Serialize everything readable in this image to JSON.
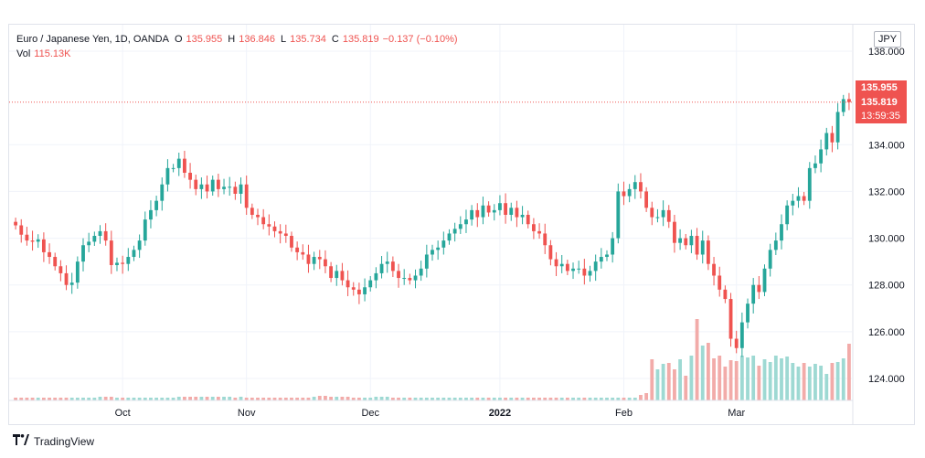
{
  "legend": {
    "symbol": "Euro / Japanese Yen, 1D, OANDA",
    "o_label": "O",
    "o": "135.955",
    "h_label": "H",
    "h": "136.846",
    "l_label": "L",
    "l": "135.734",
    "c_label": "C",
    "c": "135.819",
    "change": "−0.137 (−0.10%)",
    "vol_label": "Vol",
    "vol": "115.13K"
  },
  "currency": "JPY",
  "price_labels": {
    "open": "135.955",
    "close": "135.819",
    "countdown": "13:59:35"
  },
  "branding": {
    "name": "TradingView"
  },
  "colors": {
    "up": "#26a69a",
    "down": "#ef5350",
    "up_volume": "#9ed9d3",
    "down_volume": "#f2aba9",
    "grid": "#f0f3fa"
  },
  "chart_data": {
    "type": "candlestick",
    "ylim": [
      123.0,
      138.8
    ],
    "y_ticks": [
      "138.000",
      "134.000",
      "132.000",
      "130.000",
      "128.000",
      "126.000",
      "124.000"
    ],
    "y_tick_values": [
      138,
      134,
      132,
      130,
      128,
      126,
      124
    ],
    "x_ticks": [
      {
        "label": "Oct",
        "index": 19
      },
      {
        "label": "Nov",
        "index": 41
      },
      {
        "label": "Dec",
        "index": 63
      },
      {
        "label": "2022",
        "index": 86
      },
      {
        "label": "Feb",
        "index": 108
      },
      {
        "label": "Mar",
        "index": 128
      }
    ],
    "close_series": [
      130.55,
      130.15,
      129.9,
      129.85,
      129.95,
      129.4,
      129.2,
      128.8,
      128.5,
      128.0,
      128.1,
      129.0,
      129.7,
      129.85,
      130.1,
      130.3,
      129.9,
      128.85,
      128.95,
      128.9,
      129.2,
      129.5,
      129.9,
      130.8,
      131.2,
      131.6,
      132.3,
      133.0,
      133.0,
      133.4,
      132.8,
      132.5,
      132.1,
      132.3,
      132.0,
      132.5,
      132.1,
      132.2,
      132.2,
      131.9,
      132.3,
      131.3,
      131.0,
      130.9,
      130.6,
      130.5,
      130.3,
      130.2,
      130.1,
      129.6,
      129.4,
      129.3,
      128.9,
      129.2,
      129.1,
      128.8,
      128.3,
      128.6,
      128.2,
      127.9,
      127.8,
      127.6,
      127.9,
      128.2,
      128.5,
      128.9,
      129.0,
      128.6,
      128.3,
      128.3,
      128.2,
      128.4,
      128.7,
      129.3,
      129.5,
      129.6,
      129.9,
      130.2,
      130.4,
      130.6,
      130.8,
      131.2,
      130.9,
      131.4,
      131.1,
      131.2,
      131.5,
      131.0,
      131.3,
      130.9,
      131.0,
      130.6,
      130.3,
      130.2,
      129.7,
      129.1,
      128.8,
      128.9,
      128.6,
      128.7,
      128.7,
      128.4,
      128.6,
      129.0,
      129.2,
      129.3,
      130.0,
      132.0,
      131.8,
      132.1,
      132.4,
      132.0,
      131.3,
      130.9,
      130.9,
      131.2,
      130.7,
      129.8,
      130.0,
      129.7,
      130.1,
      129.3,
      129.9,
      128.9,
      128.4,
      127.8,
      127.4,
      125.7,
      125.3,
      126.4,
      127.2,
      128.0,
      127.7,
      128.7,
      129.5,
      129.9,
      130.6,
      131.4,
      131.6,
      131.8,
      131.6,
      133.0,
      133.2,
      133.8,
      134.5,
      134.1,
      135.4,
      135.95,
      135.82
    ],
    "volume": [
      3,
      3,
      3,
      3,
      3,
      3,
      3,
      3,
      3,
      3,
      3,
      3,
      3,
      3,
      3,
      4,
      4,
      4,
      3,
      3,
      3,
      3,
      3,
      3,
      3,
      3,
      3,
      3,
      3,
      4,
      4,
      4,
      4,
      4,
      4,
      4,
      4,
      4,
      4,
      3,
      4,
      3,
      3,
      3,
      3,
      3,
      3,
      3,
      3,
      3,
      3,
      3,
      3,
      4,
      5,
      5,
      4,
      4,
      4,
      4,
      3,
      3,
      3,
      3,
      4,
      4,
      4,
      3,
      3,
      3,
      3,
      3,
      3,
      3,
      3,
      3,
      3,
      3,
      3,
      3,
      3,
      3,
      3,
      3,
      3,
      3,
      3,
      3,
      3,
      3,
      3,
      3,
      3,
      3,
      3,
      3,
      3,
      3,
      3,
      3,
      3,
      3,
      3,
      3,
      3,
      3,
      3,
      3,
      3,
      3,
      3,
      6,
      8,
      45,
      34,
      40,
      41,
      34,
      45,
      27,
      49,
      89,
      60,
      63,
      46,
      49,
      37,
      44,
      43,
      49,
      47,
      49,
      38,
      45,
      42,
      49,
      46,
      48,
      41,
      37,
      41,
      37,
      40,
      38,
      29,
      41,
      42,
      46,
      62,
      70,
      60
    ],
    "volume_note": "relative bar heights"
  }
}
